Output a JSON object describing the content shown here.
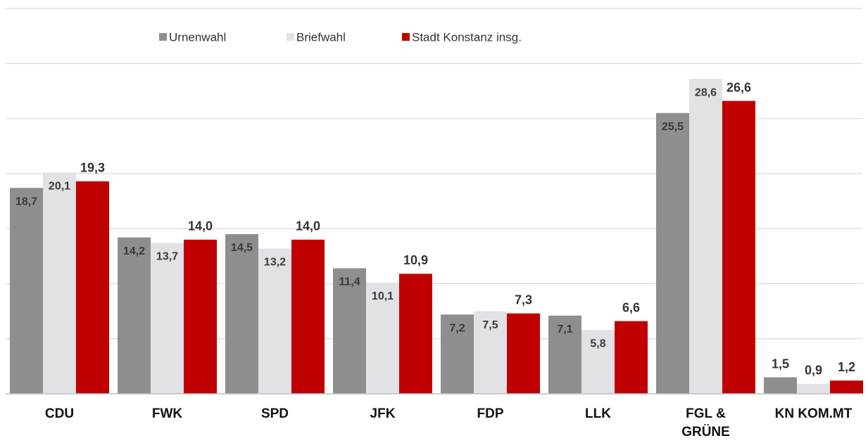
{
  "chart_data": {
    "type": "bar",
    "categories": [
      "CDU",
      "FWK",
      "SPD",
      "JFK",
      "FDP",
      "LLK",
      "FGL & GRÜNE",
      "KN KOM.MT"
    ],
    "series": [
      {
        "name": "Urnenwahl",
        "color": "#8e8e90",
        "values": [
          18.7,
          14.2,
          14.5,
          11.4,
          7.2,
          7.1,
          25.5,
          1.5
        ],
        "value_labels": [
          "18,7",
          "14,2",
          "14,5",
          "11,4",
          "7,2",
          "7,1",
          "25,5",
          "1,5"
        ]
      },
      {
        "name": "Briefwahl",
        "color": "#e2e1e5",
        "values": [
          20.1,
          13.7,
          13.2,
          10.1,
          7.5,
          5.8,
          28.6,
          0.9
        ],
        "value_labels": [
          "20,1",
          "13,7",
          "13,2",
          "10,1",
          "7,5",
          "5,8",
          "28,6",
          "0,9"
        ]
      },
      {
        "name": "Stadt Konstanz insg.",
        "color": "#c00000",
        "values": [
          19.3,
          14.0,
          14.0,
          10.9,
          7.3,
          6.6,
          26.6,
          1.2
        ],
        "value_labels": [
          "19,3",
          "14,0",
          "14,0",
          "10,9",
          "7,3",
          "6,6",
          "26,6",
          "1,2"
        ]
      }
    ],
    "ylim": [
      0,
      35
    ],
    "yticks": [
      0,
      5,
      10,
      15,
      20,
      25,
      30,
      35
    ],
    "grid": true,
    "legend": "top"
  }
}
